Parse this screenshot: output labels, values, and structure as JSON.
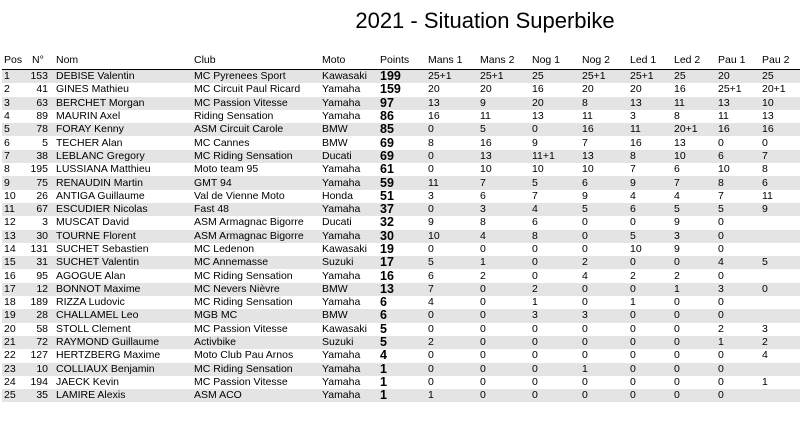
{
  "title": "2021 - Situation Superbike",
  "columns": [
    "Pos",
    "N°",
    "Nom",
    "Club",
    "Moto",
    "Points",
    "Mans 1",
    "Mans 2",
    "Nog 1",
    "Nog 2",
    "Led 1",
    "Led 2",
    "Pau 1",
    "Pau 2"
  ],
  "rows": [
    [
      "1",
      "153",
      "DEBISE Valentin",
      "MC Pyrenees Sport",
      "Kawasaki",
      "199",
      "25+1",
      "25+1",
      "25",
      "25+1",
      "25+1",
      "25",
      "20",
      "25"
    ],
    [
      "2",
      "41",
      "GINES Mathieu",
      "MC Circuit Paul Ricard",
      "Yamaha",
      "159",
      "20",
      "20",
      "16",
      "20",
      "20",
      "16",
      "25+1",
      "20+1"
    ],
    [
      "3",
      "63",
      "BERCHET Morgan",
      "MC Passion Vitesse",
      "Yamaha",
      "97",
      "13",
      "9",
      "20",
      "8",
      "13",
      "11",
      "13",
      "10"
    ],
    [
      "4",
      "89",
      "MAURIN Axel",
      "Riding Sensation",
      "Yamaha",
      "86",
      "16",
      "11",
      "13",
      "11",
      "3",
      "8",
      "11",
      "13"
    ],
    [
      "5",
      "78",
      "FORAY Kenny",
      "ASM Circuit Carole",
      "BMW",
      "85",
      "0",
      "5",
      "0",
      "16",
      "11",
      "20+1",
      "16",
      "16"
    ],
    [
      "6",
      "5",
      "TECHER Alan",
      "MC Cannes",
      "BMW",
      "69",
      "8",
      "16",
      "9",
      "7",
      "16",
      "13",
      "0",
      "0"
    ],
    [
      "7",
      "38",
      "LEBLANC Gregory",
      "MC Riding Sensation",
      "Ducati",
      "69",
      "0",
      "13",
      "11+1",
      "13",
      "8",
      "10",
      "6",
      "7"
    ],
    [
      "8",
      "195",
      "LUSSIANA Matthieu",
      "Moto team 95",
      "Yamaha",
      "61",
      "0",
      "10",
      "10",
      "10",
      "7",
      "6",
      "10",
      "8"
    ],
    [
      "9",
      "75",
      "RENAUDIN Martin",
      "GMT 94",
      "Yamaha",
      "59",
      "11",
      "7",
      "5",
      "6",
      "9",
      "7",
      "8",
      "6"
    ],
    [
      "10",
      "26",
      "ANTIGA Guillaume",
      "Val de Vienne Moto",
      "Honda",
      "51",
      "3",
      "6",
      "7",
      "9",
      "4",
      "4",
      "7",
      "11"
    ],
    [
      "11",
      "67",
      "ESCUDIER Nicolas",
      "Fast 48",
      "Yamaha",
      "37",
      "0",
      "3",
      "4",
      "5",
      "6",
      "5",
      "5",
      "9"
    ],
    [
      "12",
      "3",
      "MUSCAT David",
      "ASM Armagnac Bigorre",
      "Ducati",
      "32",
      "9",
      "8",
      "6",
      "0",
      "0",
      "9",
      "0",
      ""
    ],
    [
      "13",
      "30",
      "TOURNE Florent",
      "ASM Armagnac Bigorre",
      "Yamaha",
      "30",
      "10",
      "4",
      "8",
      "0",
      "5",
      "3",
      "0",
      ""
    ],
    [
      "14",
      "131",
      "SUCHET Sebastien",
      "MC Ledenon",
      "Kawasaki",
      "19",
      "0",
      "0",
      "0",
      "0",
      "10",
      "9",
      "0",
      ""
    ],
    [
      "15",
      "31",
      "SUCHET Valentin",
      "MC Annemasse",
      "Suzuki",
      "17",
      "5",
      "1",
      "0",
      "2",
      "0",
      "0",
      "4",
      "5"
    ],
    [
      "16",
      "95",
      "AGOGUE Alan",
      "MC Riding Sensation",
      "Yamaha",
      "16",
      "6",
      "2",
      "0",
      "4",
      "2",
      "2",
      "0",
      ""
    ],
    [
      "17",
      "12",
      "BONNOT Maxime",
      "MC Nevers Nièvre",
      "BMW",
      "13",
      "7",
      "0",
      "2",
      "0",
      "0",
      "1",
      "3",
      "0"
    ],
    [
      "18",
      "189",
      "RIZZA Ludovic",
      "MC Riding Sensation",
      "Yamaha",
      "6",
      "4",
      "0",
      "1",
      "0",
      "1",
      "0",
      "0",
      ""
    ],
    [
      "19",
      "28",
      "CHALLAMEL Leo",
      "MGB MC",
      "BMW",
      "6",
      "0",
      "0",
      "3",
      "3",
      "0",
      "0",
      "0",
      ""
    ],
    [
      "20",
      "58",
      "STOLL Clement",
      "MC Passion Vitesse",
      "Kawasaki",
      "5",
      "0",
      "0",
      "0",
      "0",
      "0",
      "0",
      "2",
      "3"
    ],
    [
      "21",
      "72",
      "RAYMOND Guillaume",
      "Activbike",
      "Suzuki",
      "5",
      "2",
      "0",
      "0",
      "0",
      "0",
      "0",
      "1",
      "2"
    ],
    [
      "22",
      "127",
      "HERTZBERG Maxime",
      "Moto Club Pau Arnos",
      "Yamaha",
      "4",
      "0",
      "0",
      "0",
      "0",
      "0",
      "0",
      "0",
      "4"
    ],
    [
      "23",
      "10",
      "COLLIAUX Benjamin",
      "MC Riding Sensation",
      "Yamaha",
      "1",
      "0",
      "0",
      "0",
      "1",
      "0",
      "0",
      "0",
      ""
    ],
    [
      "24",
      "194",
      "JAECK Kevin",
      "MC Passion Vitesse",
      "Yamaha",
      "1",
      "0",
      "0",
      "0",
      "0",
      "0",
      "0",
      "0",
      "1"
    ],
    [
      "25",
      "35",
      "LAMIRE Alexis",
      "ASM ACO",
      "Yamaha",
      "1",
      "1",
      "0",
      "0",
      "0",
      "0",
      "0",
      "0",
      ""
    ]
  ]
}
